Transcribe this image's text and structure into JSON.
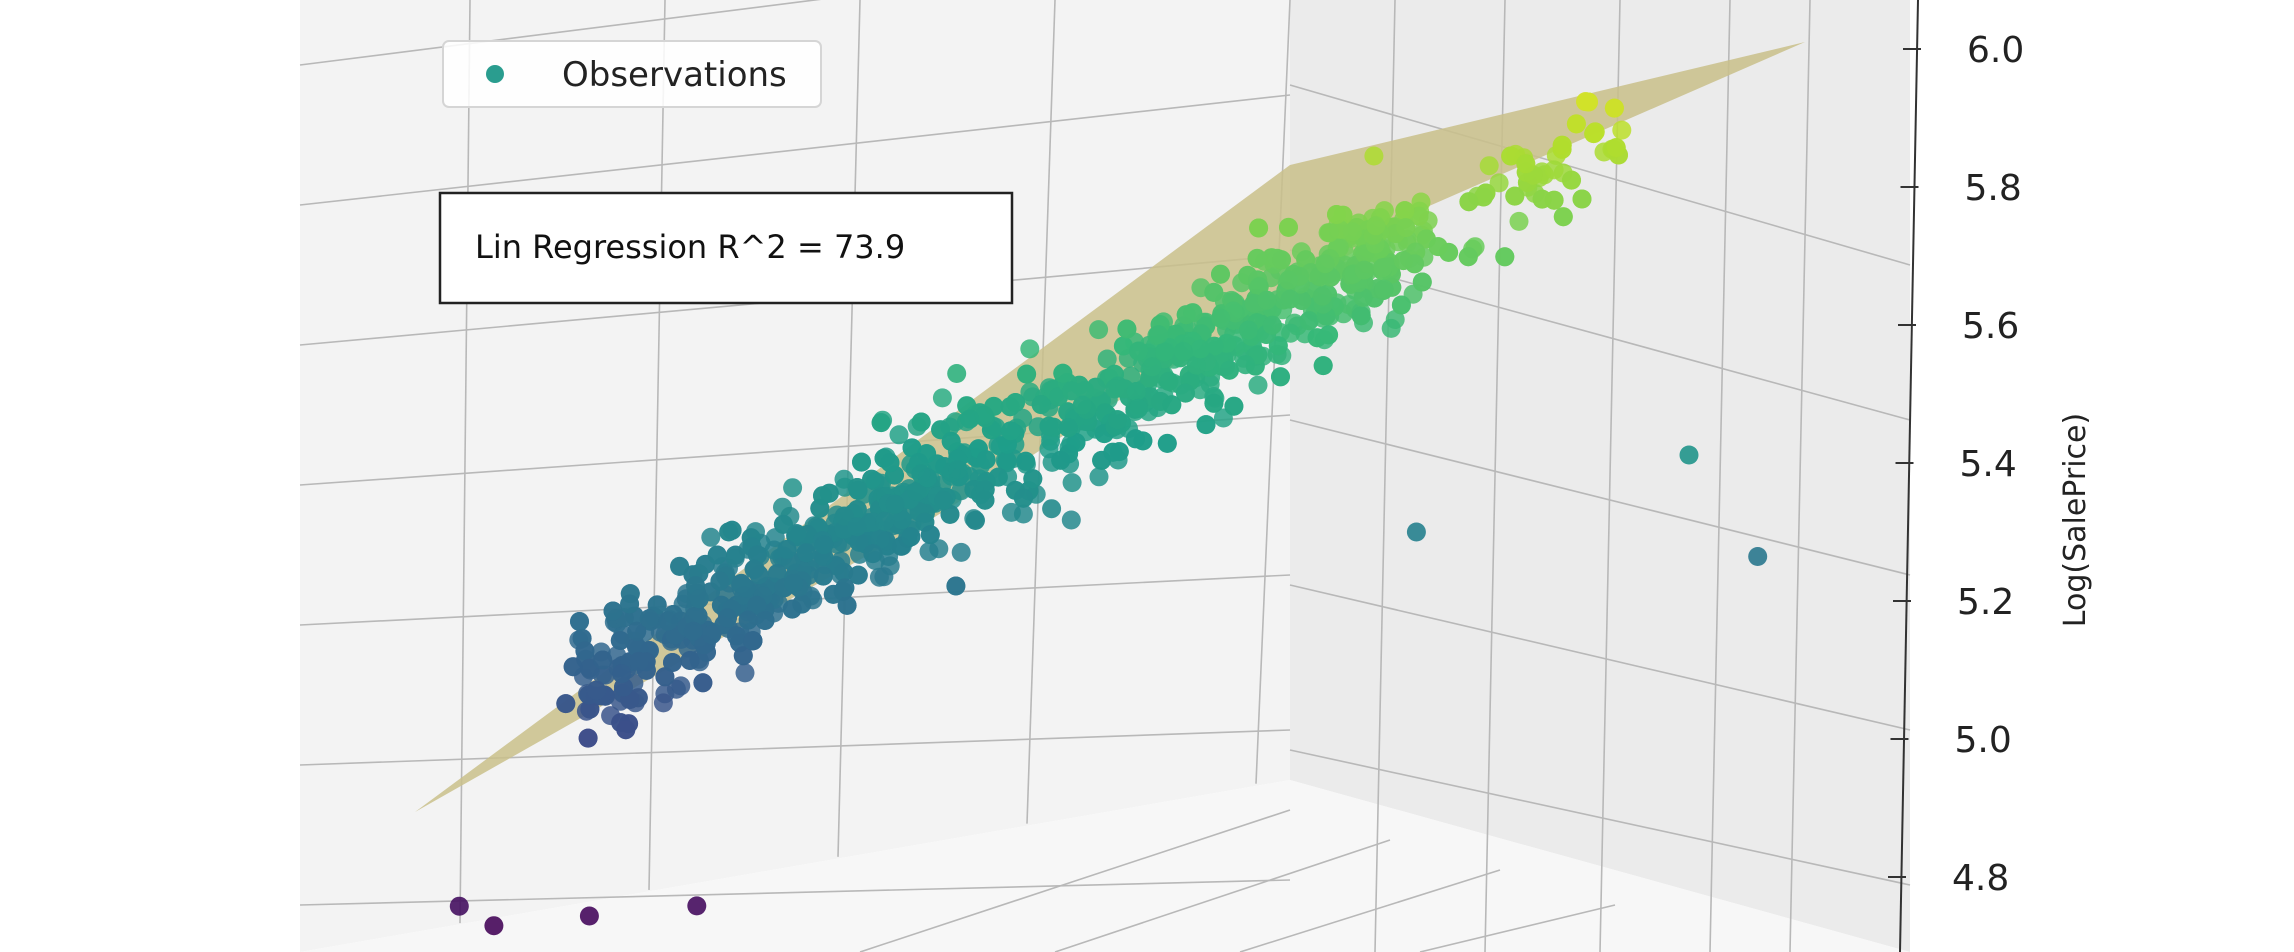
{
  "chart_data": {
    "type": "scatter",
    "title": "",
    "xlabel": "",
    "ylabel": "",
    "zlabel": "Log(SalePrice)",
    "zlim": [
      4.7,
      6.05
    ],
    "z_ticks": [
      "4.8",
      "5.0",
      "5.2",
      "5.4",
      "5.6",
      "5.8",
      "6.0"
    ],
    "grid": true,
    "legend": {
      "placement": "top-left",
      "entries": [
        "Observations"
      ]
    },
    "annotation": "Lin Regression R^2 = 73.9",
    "series": [
      {
        "name": "Observations",
        "colormap": "viridis",
        "sample_count": 1400,
        "outliers": [
          {
            "u": 0.4,
            "z": 5.55
          },
          {
            "u": 0.47,
            "z": 5.35
          },
          {
            "u": 0.62,
            "z": 5.55
          },
          {
            "u": 0.75,
            "z": 5.3
          },
          {
            "u": 0.95,
            "z": 5.4
          },
          {
            "u": 1.0,
            "z": 5.25
          },
          {
            "u": 0.02,
            "z": 4.8
          },
          {
            "u": 0.05,
            "z": 4.77
          },
          {
            "u": 0.12,
            "z": 4.78
          },
          {
            "u": 0.2,
            "z": 4.79
          }
        ]
      }
    ],
    "regression_plane": {
      "color": "#c9c08a",
      "opacity": 0.85
    }
  },
  "colors": {
    "plane": "#c9c08a",
    "grid": "#b8b8b8",
    "pane_left": "#f2f2f2",
    "pane_right": "#ebebeb",
    "pane_floor": "#f6f6f6",
    "legend_marker": "#2a9d8f"
  }
}
